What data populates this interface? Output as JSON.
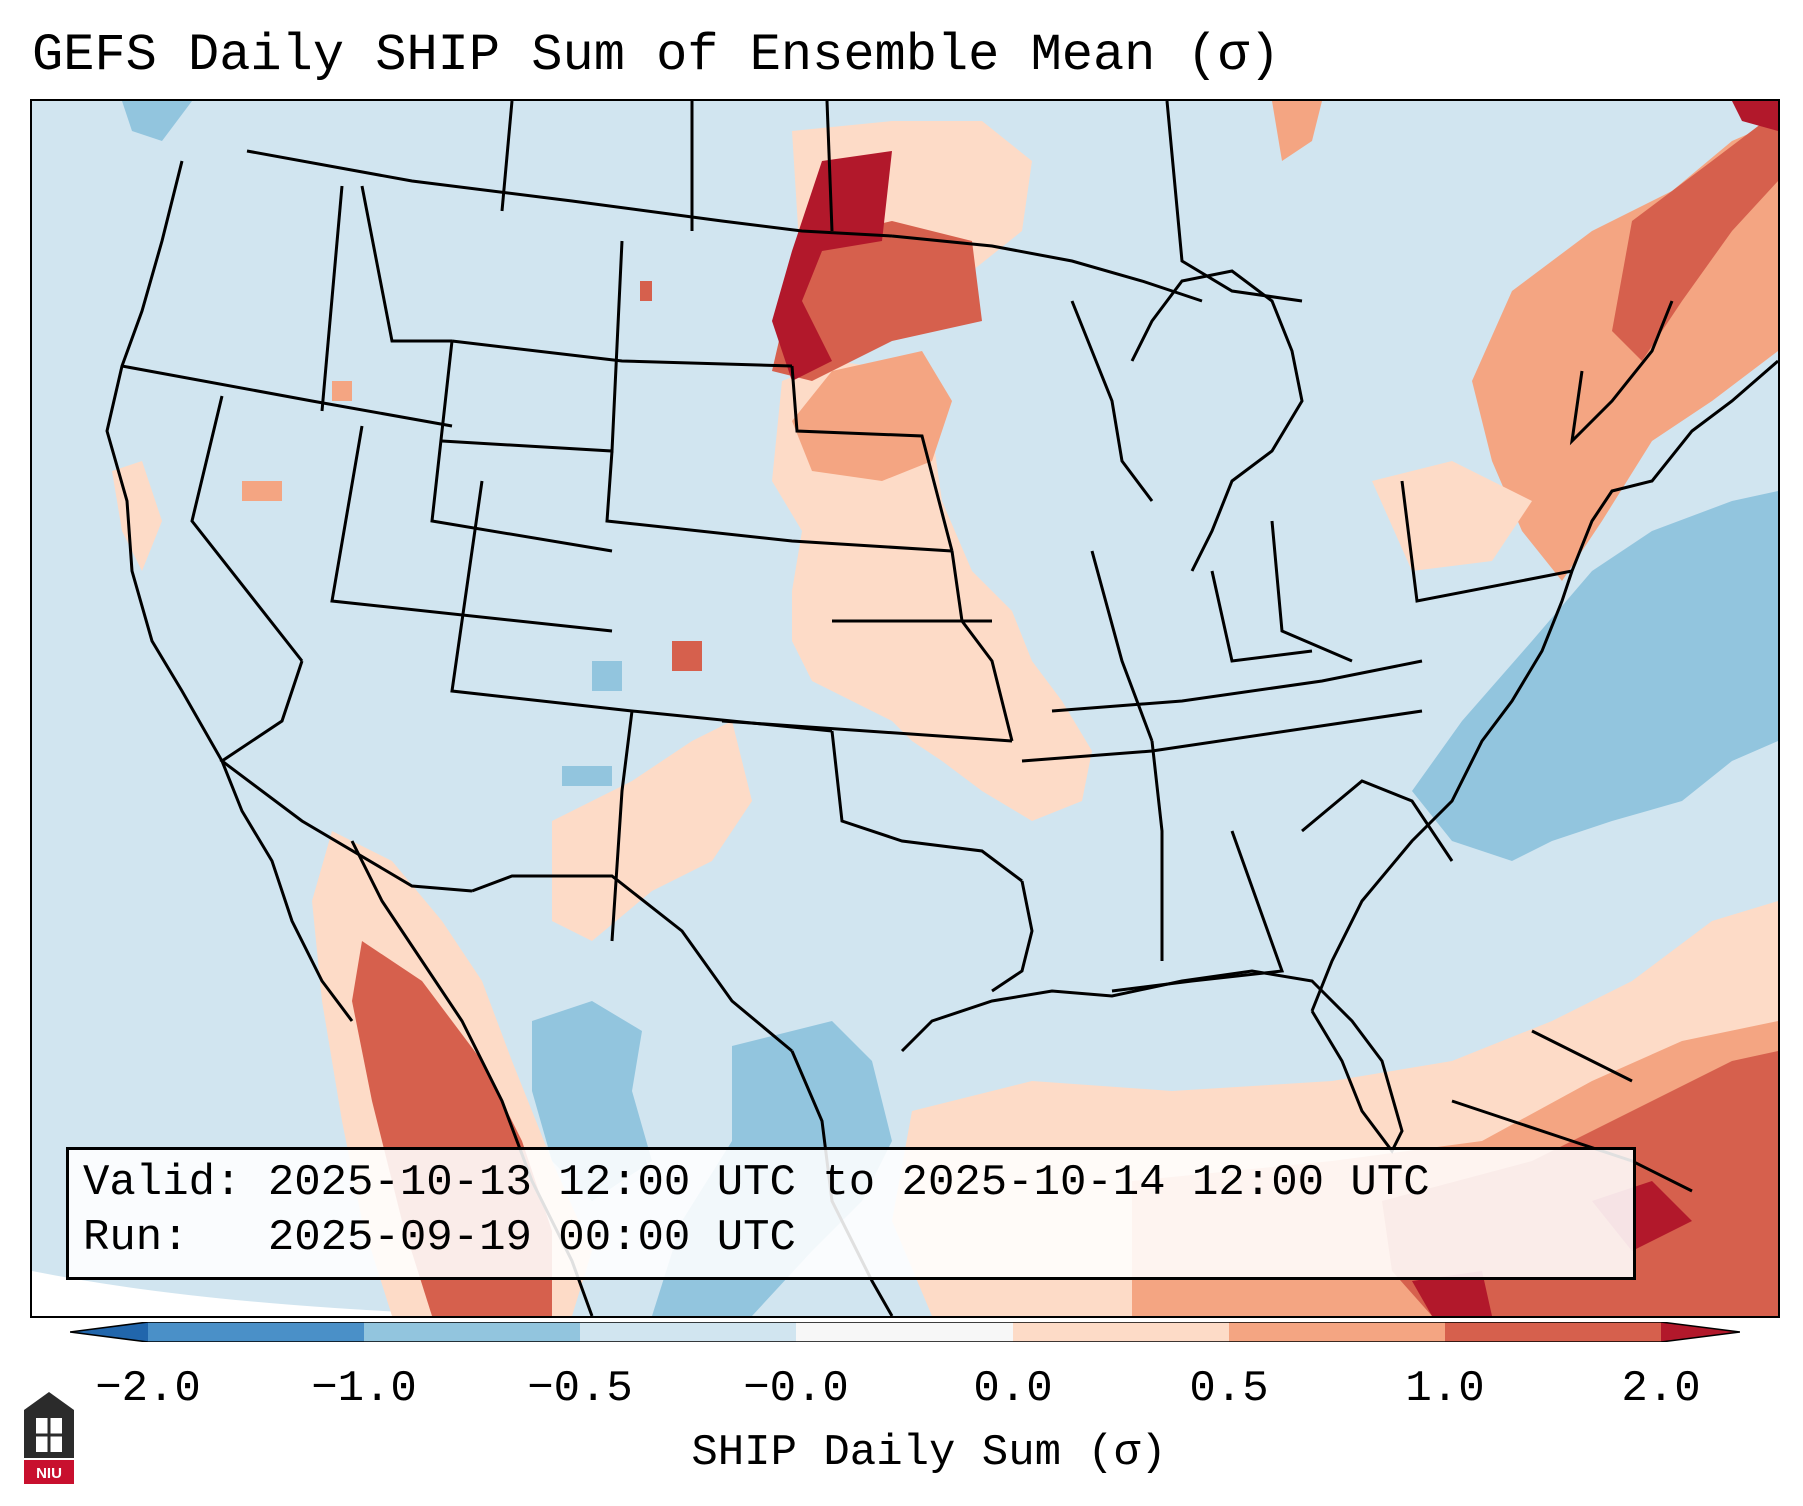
{
  "title": "GEFS Daily SHIP Sum of Ensemble Mean (σ)",
  "info": {
    "valid_label": "Valid:",
    "valid_value": "2025-10-13 12:00 UTC to 2025-10-14 12:00 UTC",
    "run_label": "Run:",
    "run_value": "2025-09-19 00:00 UTC"
  },
  "colorbar": {
    "label": "SHIP Daily Sum (σ)",
    "ticks": [
      "−2.0",
      "−1.0",
      "−0.5",
      "−0.0",
      "0.0",
      "0.5",
      "1.0",
      "2.0"
    ],
    "bins": [
      {
        "range": "-2.0 to -1.0",
        "color": "#4a90c8"
      },
      {
        "range": "-1.0 to -0.5",
        "color": "#92c5de"
      },
      {
        "range": "-0.5 to -0.0",
        "color": "#d1e5f0"
      },
      {
        "range": "-0.0 to 0.0",
        "color": "#f7f7f7"
      },
      {
        "range": "0.0 to 0.5",
        "color": "#fddbc7"
      },
      {
        "range": "0.5 to 1.0",
        "color": "#f4a582"
      },
      {
        "range": "1.0 to 2.0",
        "color": "#d6604d"
      }
    ],
    "under_color": "#2166ac",
    "over_color": "#b2182b"
  },
  "legend_colors": {
    "background": "#d1e5f0",
    "coast": "#000000"
  },
  "logo_text": "NIU"
}
